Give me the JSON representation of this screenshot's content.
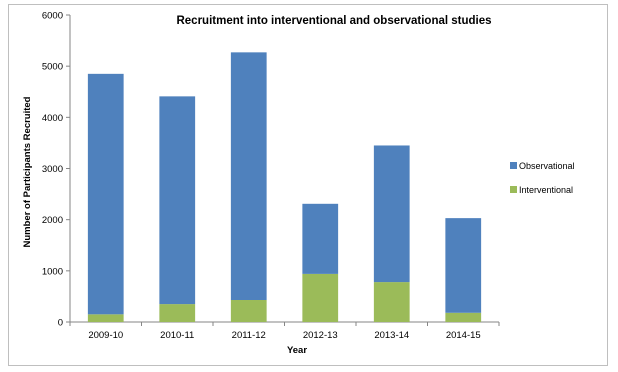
{
  "chart_data": {
    "type": "bar",
    "stacked": true,
    "title": "Recruitment into interventional and observational studies",
    "xlabel": "Year",
    "ylabel": "Number of Participants Recruited",
    "categories": [
      "2009-10",
      "2010-11",
      "2011-12",
      "2012-13",
      "2013-14",
      "2014-15"
    ],
    "series": [
      {
        "name": "Interventional",
        "color": "#9bbb59",
        "values": [
          150,
          350,
          430,
          940,
          780,
          180
        ]
      },
      {
        "name": "Observational",
        "color": "#4f81bd",
        "values": [
          4700,
          4060,
          4840,
          1370,
          2670,
          1850
        ]
      }
    ],
    "ylim": [
      0,
      6000
    ],
    "yticks": [
      0,
      1000,
      2000,
      3000,
      4000,
      5000,
      6000
    ],
    "grid": false,
    "legend": {
      "position": "right",
      "order": [
        "Observational",
        "Interventional"
      ]
    }
  }
}
